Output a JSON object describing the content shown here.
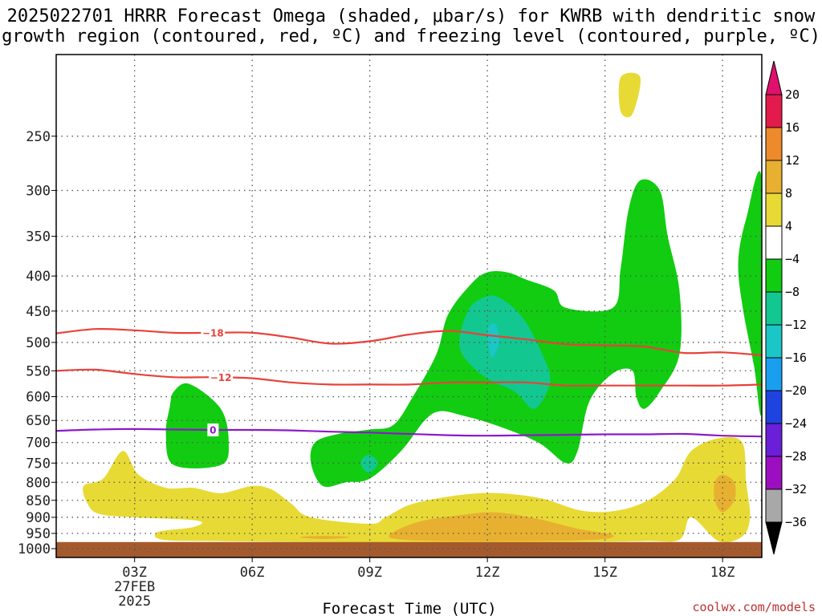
{
  "title": {
    "line1": "2025022701 HRRR Forecast Omega (shaded, μbar/s) for KWRB with dendritic snow",
    "line2": "growth region (contoured, red, ºC) and freezing level (contoured, purple, ºC)"
  },
  "credit": "coolwx.com/models",
  "chart_data": {
    "type": "heatmap",
    "xlabel": "Forecast Time (UTC)",
    "x_ticks": [
      {
        "hour": 3,
        "label": "03Z",
        "sub": [
          "27FEB",
          "2025"
        ]
      },
      {
        "hour": 6,
        "label": "06Z",
        "sub": []
      },
      {
        "hour": 9,
        "label": "09Z",
        "sub": []
      },
      {
        "hour": 12,
        "label": "12Z",
        "sub": []
      },
      {
        "hour": 15,
        "label": "15Z",
        "sub": []
      },
      {
        "hour": 18,
        "label": "18Z",
        "sub": []
      }
    ],
    "xlim": [
      1,
      19
    ],
    "y_scale": "log",
    "y_reversed": true,
    "y_ticks": [
      250,
      300,
      350,
      400,
      450,
      500,
      550,
      600,
      650,
      700,
      750,
      800,
      850,
      900,
      950,
      1000
    ],
    "ylim": [
      190,
      1030
    ],
    "grid": true,
    "colorbar": {
      "levels": [
        "20",
        "16",
        "12",
        "8",
        "4",
        "−4",
        "−8",
        "−12",
        "−16",
        "−20",
        "−24",
        "−28",
        "−32",
        "−36"
      ],
      "colors": [
        "#e21b4c",
        "#ee8a2a",
        "#e8b030",
        "#e8da35",
        "#ffffff",
        "#11cc11",
        "#12c890",
        "#1bc6c6",
        "#1a9fee",
        "#1f43e0",
        "#6a1fd8",
        "#9b0fc0",
        "#a8a8a8"
      ],
      "top_arrow": "#e0106e",
      "bottom_arrow": "#000000"
    },
    "shaded_regions": [
      {
        "color": "#e8da35",
        "name": "upward 4-8 near tropopause",
        "pts": [
          [
            15.4,
            205
          ],
          [
            15.9,
            205
          ],
          [
            15.7,
            232
          ],
          [
            15.4,
            230
          ]
        ]
      },
      {
        "color": "#11cc11",
        "name": "ascent -4 to -8 region 1",
        "pts": [
          [
            4.0,
            590
          ],
          [
            4.4,
            575
          ],
          [
            5.2,
            625
          ],
          [
            5.4,
            700
          ],
          [
            5.2,
            755
          ],
          [
            4.0,
            755
          ],
          [
            3.8,
            680
          ],
          [
            3.9,
            620
          ]
        ]
      },
      {
        "color": "#11cc11",
        "name": "ascent -4 to -8 main",
        "pts": [
          [
            7.6,
            700
          ],
          [
            8.2,
            680
          ],
          [
            9.0,
            670
          ],
          [
            9.6,
            660
          ],
          [
            10.1,
            600
          ],
          [
            10.7,
            520
          ],
          [
            11.0,
            455
          ],
          [
            11.6,
            410
          ],
          [
            12.0,
            395
          ],
          [
            12.5,
            395
          ],
          [
            13.0,
            405
          ],
          [
            13.7,
            420
          ],
          [
            14.0,
            445
          ],
          [
            15.2,
            445
          ],
          [
            15.4,
            390
          ],
          [
            15.6,
            320
          ],
          [
            15.9,
            290
          ],
          [
            16.4,
            300
          ],
          [
            16.6,
            350
          ],
          [
            16.9,
            420
          ],
          [
            16.9,
            520
          ],
          [
            16.4,
            590
          ],
          [
            16.0,
            625
          ],
          [
            15.8,
            600
          ],
          [
            15.7,
            550
          ],
          [
            15.2,
            555
          ],
          [
            14.6,
            610
          ],
          [
            14.3,
            720
          ],
          [
            14.0,
            750
          ],
          [
            13.3,
            700
          ],
          [
            12.2,
            660
          ],
          [
            11.4,
            640
          ],
          [
            10.8,
            630
          ],
          [
            10.4,
            650
          ],
          [
            9.8,
            720
          ],
          [
            9.0,
            790
          ],
          [
            8.4,
            800
          ],
          [
            7.8,
            810
          ],
          [
            7.5,
            750
          ]
        ]
      },
      {
        "color": "#11cc11",
        "name": "ascent -4 to -8 right edge",
        "pts": [
          [
            19.0,
            290
          ],
          [
            18.6,
            330
          ],
          [
            18.4,
            380
          ],
          [
            18.5,
            440
          ],
          [
            18.8,
            540
          ],
          [
            19.0,
            620
          ]
        ]
      },
      {
        "color": "#12c890",
        "name": "ascent -8 to -12",
        "pts": [
          [
            11.5,
            450
          ],
          [
            11.9,
            430
          ],
          [
            12.3,
            430
          ],
          [
            12.9,
            460
          ],
          [
            13.4,
            520
          ],
          [
            13.6,
            570
          ],
          [
            13.2,
            625
          ],
          [
            12.7,
            590
          ],
          [
            11.9,
            560
          ],
          [
            11.3,
            510
          ]
        ]
      },
      {
        "color": "#12c890",
        "name": "ascent -8 to -12 small",
        "pts": [
          [
            8.8,
            740
          ],
          [
            9.0,
            730
          ],
          [
            9.2,
            750
          ],
          [
            9.0,
            775
          ],
          [
            8.8,
            760
          ]
        ]
      },
      {
        "color": "#1bc6c6",
        "name": "ascent -12 to -16",
        "pts": [
          [
            12.0,
            480
          ],
          [
            12.2,
            470
          ],
          [
            12.3,
            500
          ],
          [
            12.1,
            525
          ]
        ]
      },
      {
        "color": "#e8da35",
        "name": "descent 4-8 low levels",
        "pts": [
          [
            1.7,
            810
          ],
          [
            2.2,
            790
          ],
          [
            2.7,
            720
          ],
          [
            3.1,
            780
          ],
          [
            3.8,
            815
          ],
          [
            4.5,
            815
          ],
          [
            5.2,
            830
          ],
          [
            6.0,
            810
          ],
          [
            6.5,
            820
          ],
          [
            7.0,
            860
          ],
          [
            7.5,
            900
          ],
          [
            9.0,
            920
          ],
          [
            9.4,
            900
          ],
          [
            10.1,
            860
          ],
          [
            11.3,
            835
          ],
          [
            12.3,
            830
          ],
          [
            13.4,
            845
          ],
          [
            14.4,
            880
          ],
          [
            15.3,
            880
          ],
          [
            16.1,
            850
          ],
          [
            16.8,
            790
          ],
          [
            17.2,
            720
          ],
          [
            17.9,
            690
          ],
          [
            18.5,
            700
          ],
          [
            18.6,
            800
          ],
          [
            18.7,
            900
          ],
          [
            18.5,
            960
          ],
          [
            17.9,
            975
          ],
          [
            17.2,
            900
          ],
          [
            16.9,
            970
          ],
          [
            16.0,
            975
          ],
          [
            14.0,
            978
          ],
          [
            11.0,
            980
          ],
          [
            8.0,
            978
          ],
          [
            5.0,
            975
          ],
          [
            3.7,
            970
          ],
          [
            3.6,
            945
          ],
          [
            4.5,
            930
          ],
          [
            4.6,
            910
          ],
          [
            3.0,
            900
          ],
          [
            2.1,
            890
          ],
          [
            1.8,
            860
          ]
        ]
      },
      {
        "color": "#e8b030",
        "name": "descent 8-12 band",
        "pts": [
          [
            9.5,
            955
          ],
          [
            10.2,
            915
          ],
          [
            11.2,
            895
          ],
          [
            12.2,
            885
          ],
          [
            13.3,
            905
          ],
          [
            14.3,
            935
          ],
          [
            15.2,
            955
          ],
          [
            14.8,
            970
          ],
          [
            13.0,
            975
          ],
          [
            11.0,
            975
          ],
          [
            9.8,
            970
          ]
        ]
      },
      {
        "color": "#e8b030",
        "name": "descent 8-12 small",
        "pts": [
          [
            7.2,
            962
          ],
          [
            7.8,
            958
          ],
          [
            8.5,
            962
          ],
          [
            7.8,
            968
          ]
        ]
      },
      {
        "color": "#e8b030",
        "name": "descent 8-12 right",
        "pts": [
          [
            17.8,
            800
          ],
          [
            18.0,
            780
          ],
          [
            18.3,
            800
          ],
          [
            18.3,
            850
          ],
          [
            18.0,
            885
          ],
          [
            17.8,
            850
          ]
        ]
      }
    ],
    "contours": [
      {
        "value": -18,
        "label": "−18",
        "color": "#e8413a",
        "label_x": 5.0,
        "x": [
          1.0,
          2.0,
          3.0,
          4.0,
          5.0,
          6.0,
          7.0,
          8.0,
          9.0,
          10.0,
          11.0,
          12.0,
          13.0,
          14.0,
          15.0,
          16.0,
          17.0,
          18.0,
          19.0
        ],
        "p": [
          485,
          478,
          480,
          484,
          484,
          484,
          492,
          502,
          498,
          487,
          481,
          488,
          495,
          503,
          505,
          507,
          518,
          517,
          522
        ]
      },
      {
        "value": -12,
        "label": "−12",
        "color": "#e8413a",
        "label_x": 5.2,
        "x": [
          1.0,
          2.0,
          3.0,
          4.0,
          5.0,
          6.0,
          7.0,
          8.0,
          9.0,
          10.0,
          11.0,
          12.0,
          13.0,
          14.0,
          15.0,
          16.0,
          17.0,
          18.0,
          19.0
        ],
        "p": [
          550,
          548,
          556,
          562,
          562,
          564,
          572,
          576,
          576,
          576,
          572,
          572,
          572,
          578,
          578,
          578,
          578,
          578,
          576
        ]
      },
      {
        "value": 0,
        "label": "0",
        "color": "#8c19c8",
        "label_x": 5.0,
        "x": [
          1.0,
          2.0,
          3.0,
          4.0,
          5.0,
          6.0,
          7.0,
          8.0,
          9.0,
          10.0,
          11.0,
          12.0,
          13.0,
          14.0,
          15.0,
          16.0,
          17.0,
          18.0,
          19.0
        ],
        "p": [
          673,
          670,
          669,
          670,
          671,
          671,
          672,
          675,
          677,
          680,
          683,
          684,
          683,
          682,
          681,
          681,
          680,
          684,
          686
        ]
      }
    ],
    "ground": {
      "color": "#a55a2e",
      "p_top": 978
    }
  }
}
